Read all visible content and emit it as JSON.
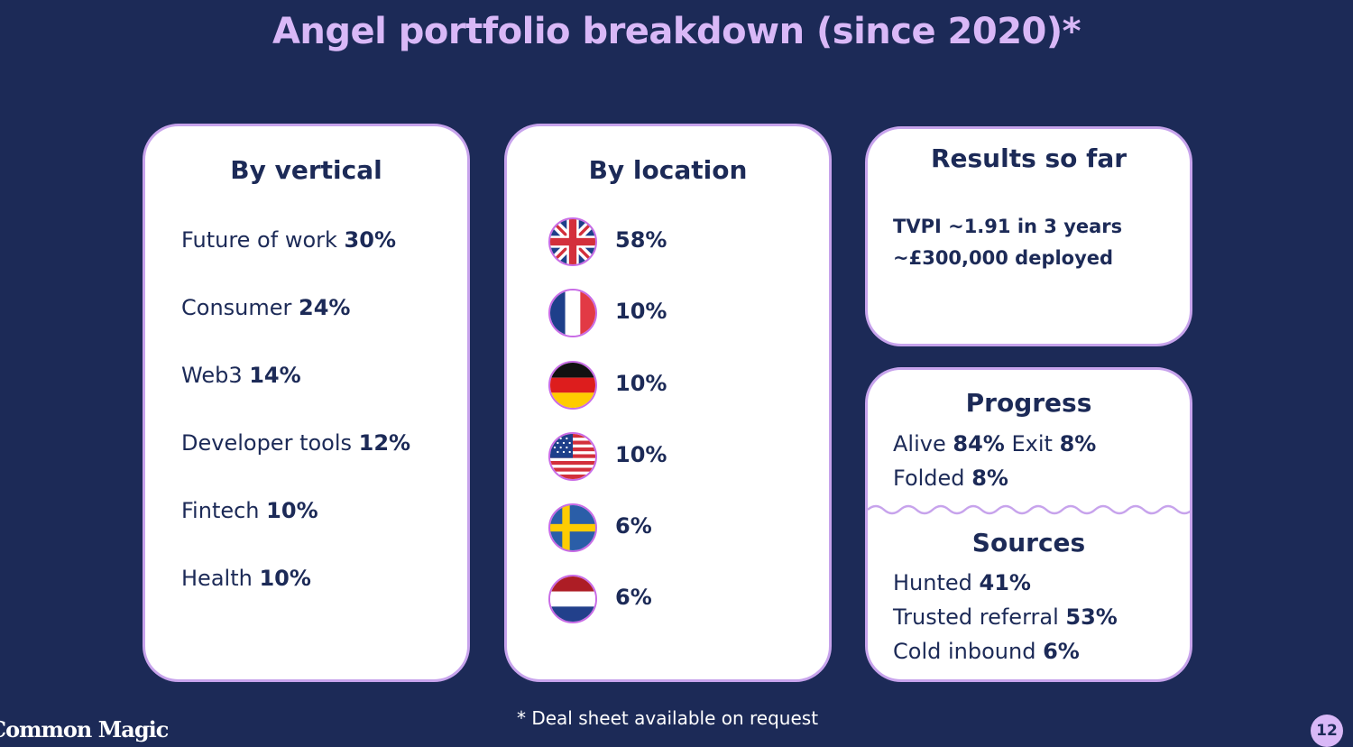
{
  "title": "Angel portfolio breakdown (since 2020)*",
  "vertical": {
    "heading": "By vertical",
    "items": [
      {
        "label": "Future of work",
        "value": "30%"
      },
      {
        "label": "Consumer",
        "value": "24%"
      },
      {
        "label": "Web3",
        "value": "14%"
      },
      {
        "label": "Developer tools",
        "value": "12%"
      },
      {
        "label": "Fintech",
        "value": "10%"
      },
      {
        "label": "Health",
        "value": "10%"
      }
    ]
  },
  "location": {
    "heading": "By location",
    "items": [
      {
        "flag": "uk-flag-icon",
        "value": "58%"
      },
      {
        "flag": "france-flag-icon",
        "value": "10%"
      },
      {
        "flag": "germany-flag-icon",
        "value": "10%"
      },
      {
        "flag": "usa-flag-icon",
        "value": "10%"
      },
      {
        "flag": "sweden-flag-icon",
        "value": "6%"
      },
      {
        "flag": "netherlands-flag-icon",
        "value": "6%"
      }
    ]
  },
  "results": {
    "heading": "Results so far",
    "lines": [
      "TVPI ~1.91 in 3 years",
      "~£300,000 deployed"
    ]
  },
  "progress": {
    "heading": "Progress",
    "alive_label": "Alive",
    "alive_value": "84%",
    "exit_label": "Exit",
    "exit_value": "8%",
    "folded_label": "Folded",
    "folded_value": "8%"
  },
  "sources": {
    "heading": "Sources",
    "items": [
      {
        "label": "Hunted",
        "value": "41%"
      },
      {
        "label": "Trusted referral",
        "value": "53%"
      },
      {
        "label": "Cold inbound",
        "value": "6%"
      }
    ]
  },
  "footnote": "* Deal sheet available on request",
  "logo": "Common Magic",
  "page_number": "12",
  "colors": {
    "background": "#1c2a57",
    "title": "#d9b8f7",
    "card_border": "#c7a3ec",
    "text": "#1c2a57"
  }
}
